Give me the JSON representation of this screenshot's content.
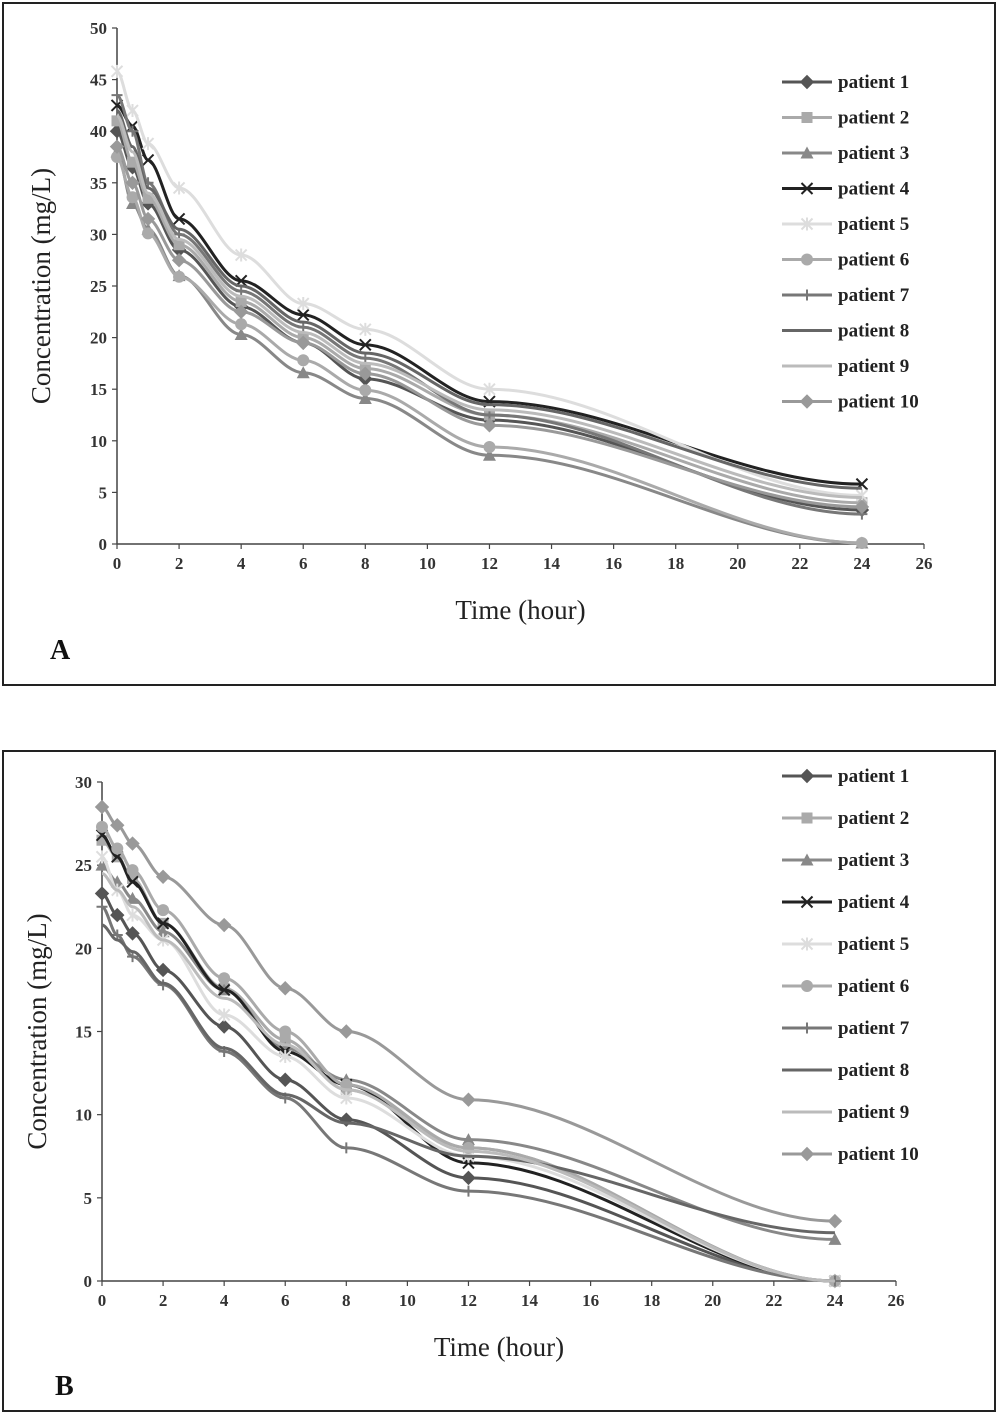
{
  "chart_data": [
    {
      "type": "line",
      "panel_label": "A",
      "xlabel": "Time (hour)",
      "ylabel": "Concentration (mg/L)",
      "xlim": [
        0,
        26
      ],
      "ylim": [
        0,
        50
      ],
      "xticks": [
        0,
        2,
        4,
        6,
        8,
        10,
        12,
        14,
        16,
        18,
        20,
        22,
        24,
        26
      ],
      "yticks": [
        0,
        5,
        10,
        15,
        20,
        25,
        30,
        35,
        40,
        45,
        50
      ],
      "grid": false,
      "legend_position": "right",
      "x": [
        0,
        0.5,
        1,
        2,
        4,
        6,
        8,
        12,
        24
      ],
      "series": [
        {
          "name": "patient 1",
          "marker": "diamond",
          "color": "#555555",
          "values": [
            40.0,
            36.5,
            33.0,
            28.5,
            23.0,
            19.5,
            16.0,
            12.0,
            3.3
          ]
        },
        {
          "name": "patient 2",
          "marker": "square",
          "color": "#aaaaaa",
          "values": [
            41.0,
            37.0,
            33.5,
            29.0,
            23.5,
            20.0,
            17.0,
            12.5,
            4.0
          ]
        },
        {
          "name": "patient 3",
          "marker": "triangle",
          "color": "#888888",
          "values": [
            38.0,
            33.0,
            30.5,
            26.0,
            20.3,
            16.6,
            14.1,
            8.6,
            0.1
          ]
        },
        {
          "name": "patient 4",
          "marker": "x",
          "color": "#222222",
          "values": [
            42.5,
            40.5,
            37.2,
            31.5,
            25.5,
            22.2,
            19.3,
            13.8,
            5.8
          ]
        },
        {
          "name": "patient 5",
          "marker": "star",
          "color": "#dddddd",
          "values": [
            45.8,
            42.0,
            38.8,
            34.5,
            28.0,
            23.3,
            20.8,
            15.0,
            4.7
          ]
        },
        {
          "name": "patient 6",
          "marker": "circle",
          "color": "#aaaaaa",
          "values": [
            37.5,
            33.6,
            30.1,
            25.9,
            21.3,
            17.8,
            14.9,
            9.4,
            0.1
          ]
        },
        {
          "name": "patient 7",
          "marker": "plus",
          "color": "#777777",
          "values": [
            43.5,
            40.0,
            35.0,
            30.0,
            24.5,
            21.0,
            18.0,
            12.5,
            2.9
          ]
        },
        {
          "name": "patient 8",
          "marker": "none",
          "color": "#666666",
          "values": [
            42.0,
            38.5,
            34.5,
            30.5,
            25.0,
            21.5,
            18.5,
            13.5,
            5.4
          ]
        },
        {
          "name": "patient 9",
          "marker": "none",
          "color": "#bbbbbb",
          "values": [
            41.5,
            38.0,
            34.0,
            29.5,
            24.0,
            20.5,
            17.5,
            13.0,
            4.5
          ]
        },
        {
          "name": "patient 10",
          "marker": "diamond",
          "color": "#999999",
          "values": [
            38.5,
            35.0,
            31.5,
            27.5,
            22.5,
            19.5,
            16.5,
            11.5,
            3.6
          ]
        }
      ]
    },
    {
      "type": "line",
      "panel_label": "B",
      "xlabel": "Time (hour)",
      "ylabel": "Concentration (mg/L)",
      "xlim": [
        0,
        26
      ],
      "ylim": [
        0,
        30
      ],
      "xticks": [
        0,
        2,
        4,
        6,
        8,
        10,
        12,
        14,
        16,
        18,
        20,
        22,
        24,
        26
      ],
      "yticks": [
        0,
        5,
        10,
        15,
        20,
        25,
        30
      ],
      "grid": false,
      "legend_position": "right",
      "x": [
        0,
        0.5,
        1,
        2,
        4,
        6,
        8,
        12,
        24
      ],
      "series": [
        {
          "name": "patient 1",
          "marker": "diamond",
          "color": "#555555",
          "values": [
            23.3,
            22.0,
            20.9,
            18.7,
            15.3,
            12.1,
            9.7,
            6.2,
            0.0
          ]
        },
        {
          "name": "patient 2",
          "marker": "square",
          "color": "#aaaaaa",
          "values": [
            26.5,
            25.5,
            24.2,
            21.5,
            17.6,
            14.5,
            11.5,
            8.0,
            0.0
          ]
        },
        {
          "name": "patient 3",
          "marker": "triangle",
          "color": "#888888",
          "values": [
            25.0,
            24.0,
            23.0,
            21.0,
            17.5,
            14.0,
            12.1,
            8.5,
            2.5
          ]
        },
        {
          "name": "patient 4",
          "marker": "x",
          "color": "#222222",
          "values": [
            26.8,
            25.5,
            24.0,
            21.5,
            17.5,
            13.8,
            11.8,
            7.1,
            0.0
          ]
        },
        {
          "name": "patient 5",
          "marker": "star",
          "color": "#dddddd",
          "values": [
            25.5,
            23.5,
            22.0,
            20.5,
            16.0,
            13.5,
            11.0,
            7.5,
            0.0
          ]
        },
        {
          "name": "patient 6",
          "marker": "circle",
          "color": "#aaaaaa",
          "values": [
            27.3,
            26.0,
            24.7,
            22.3,
            18.2,
            15.0,
            11.8,
            8.0,
            0.0
          ]
        },
        {
          "name": "patient 7",
          "marker": "plus",
          "color": "#777777",
          "values": [
            22.5,
            20.8,
            19.5,
            17.8,
            13.8,
            11.0,
            8.0,
            5.4,
            0.0
          ]
        },
        {
          "name": "patient 8",
          "marker": "none",
          "color": "#666666",
          "values": [
            21.4,
            20.5,
            19.8,
            17.9,
            14.0,
            11.2,
            9.5,
            7.5,
            2.9
          ]
        },
        {
          "name": "patient 9",
          "marker": "none",
          "color": "#bbbbbb",
          "values": [
            24.5,
            23.5,
            22.5,
            20.5,
            17.0,
            14.2,
            11.5,
            7.8,
            0.0
          ]
        },
        {
          "name": "patient 10",
          "marker": "diamond",
          "color": "#999999",
          "values": [
            28.5,
            27.4,
            26.3,
            24.3,
            21.4,
            17.6,
            15.0,
            10.9,
            3.6
          ]
        }
      ]
    }
  ]
}
